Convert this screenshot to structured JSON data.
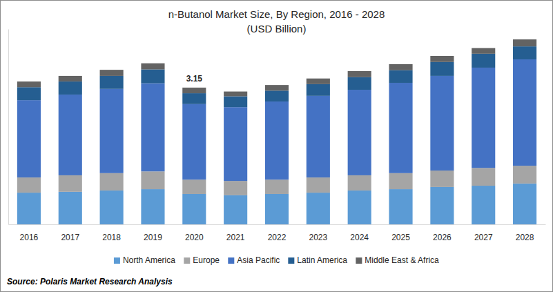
{
  "chart_data": {
    "type": "bar",
    "stacked": true,
    "title": "n-Butanol Market Size, By Region, 2016 - 2028",
    "subtitle": "(USD Billion)",
    "source": "Source: Polaris Market Research Analysis",
    "categories": [
      "2016",
      "2017",
      "2018",
      "2019",
      "2020",
      "2021",
      "2022",
      "2023",
      "2024",
      "2025",
      "2026",
      "2027",
      "2028"
    ],
    "series": [
      {
        "name": "North America",
        "color": "#5b9bd5",
        "values": [
          0.73,
          0.75,
          0.78,
          0.81,
          0.7,
          0.67,
          0.7,
          0.73,
          0.78,
          0.81,
          0.86,
          0.89,
          0.94
        ]
      },
      {
        "name": "Europe",
        "color": "#a5a5a5",
        "values": [
          0.35,
          0.38,
          0.4,
          0.41,
          0.33,
          0.33,
          0.33,
          0.35,
          0.35,
          0.37,
          0.38,
          0.41,
          0.41
        ]
      },
      {
        "name": "Asia Pacific",
        "color": "#4472c4",
        "values": [
          1.78,
          1.86,
          1.94,
          2.03,
          1.74,
          1.7,
          1.8,
          1.88,
          1.97,
          2.08,
          2.18,
          2.31,
          2.45
        ]
      },
      {
        "name": "Latin America",
        "color": "#255e91",
        "values": [
          0.3,
          0.3,
          0.3,
          0.32,
          0.25,
          0.25,
          0.25,
          0.27,
          0.29,
          0.29,
          0.32,
          0.32,
          0.3
        ]
      },
      {
        "name": "Middle East & Africa",
        "color": "#636363",
        "values": [
          0.13,
          0.13,
          0.14,
          0.14,
          0.13,
          0.11,
          0.13,
          0.13,
          0.14,
          0.14,
          0.14,
          0.13,
          0.16
        ]
      }
    ],
    "annotations": [
      {
        "x": "2020",
        "y": 3.15,
        "text": "3.15"
      }
    ],
    "ylim": [
      0,
      4.5
    ],
    "yticks": [],
    "grid": false,
    "tick_labels": "x",
    "legend": "bottom"
  }
}
